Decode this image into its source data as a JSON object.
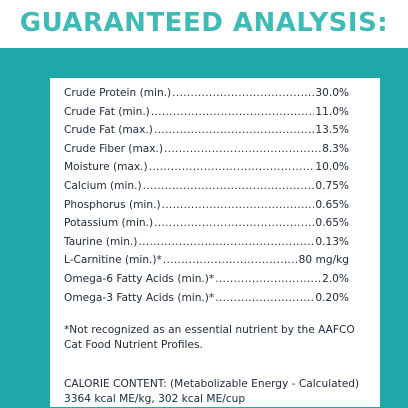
{
  "title": "GUARANTEED ANALYSIS:",
  "colors": {
    "title": "#3fbab7",
    "panel": "#1fa8a8",
    "text": "#1e2a3a"
  },
  "analysis": [
    {
      "name": "Crude Protein (min.)",
      "value": "30.0%"
    },
    {
      "name": "Crude Fat (min.)",
      "value": "11.0%"
    },
    {
      "name": "Crude Fat (max.)",
      "value": "13.5%"
    },
    {
      "name": "Crude Fiber (max.)",
      "value": "8.3%"
    },
    {
      "name": "Moisture (max.)",
      "value": "10.0%"
    },
    {
      "name": "Calcium (min.)",
      "value": "0.75%"
    },
    {
      "name": "Phosphorus (min.)",
      "value": "0.65%"
    },
    {
      "name": "Potassium (min.)",
      "value": "0.65%"
    },
    {
      "name": "Taurine (min.)",
      "value": "0.13%"
    },
    {
      "name": "L-Carnitine (min.)*",
      "value": "80 mg/kg"
    },
    {
      "name": "Omega-6 Fatty Acids (min.)*",
      "value": "2.0%"
    },
    {
      "name": "Omega-3 Fatty Acids (min.)*",
      "value": "0.20%"
    }
  ],
  "footnote": "*Not recognized as an essential nutrient by the AAFCO Cat Food Nutrient Profiles.",
  "calorie": "CALORIE CONTENT: (Metabolizable Energy - Calculated) 3364 kcal ME/kg, 302 kcal ME/cup"
}
